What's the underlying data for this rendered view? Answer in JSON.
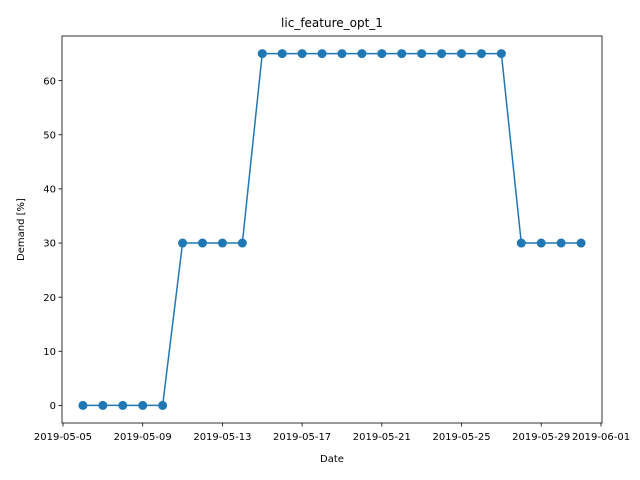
{
  "chart_data": {
    "type": "line",
    "title": "lic_feature_opt_1",
    "xlabel": "Date",
    "ylabel": "Demand [%]",
    "x": [
      "2019-05-06",
      "2019-05-07",
      "2019-05-08",
      "2019-05-09",
      "2019-05-10",
      "2019-05-11",
      "2019-05-12",
      "2019-05-13",
      "2019-05-14",
      "2019-05-15",
      "2019-05-16",
      "2019-05-17",
      "2019-05-18",
      "2019-05-19",
      "2019-05-20",
      "2019-05-21",
      "2019-05-22",
      "2019-05-23",
      "2019-05-24",
      "2019-05-25",
      "2019-05-26",
      "2019-05-27",
      "2019-05-28",
      "2019-05-29",
      "2019-05-30",
      "2019-05-31"
    ],
    "series": [
      {
        "values": [
          0,
          0,
          0,
          0,
          0,
          30,
          30,
          30,
          30,
          65,
          65,
          65,
          65,
          65,
          65,
          65,
          65,
          65,
          65,
          65,
          65,
          65,
          30,
          30,
          30,
          30
        ],
        "color": "#1f77b4"
      }
    ],
    "xlim": [
      "2019-05-04.95",
      "2019-06-01.05"
    ],
    "ylim": [
      -3.25,
      68.25
    ],
    "x_ticks": [
      "2019-05-05",
      "2019-05-09",
      "2019-05-13",
      "2019-05-17",
      "2019-05-21",
      "2019-05-25",
      "2019-05-29",
      "2019-06-01"
    ],
    "y_ticks": [
      0,
      10,
      20,
      30,
      40,
      50,
      60
    ],
    "grid": false,
    "legend": "none"
  }
}
